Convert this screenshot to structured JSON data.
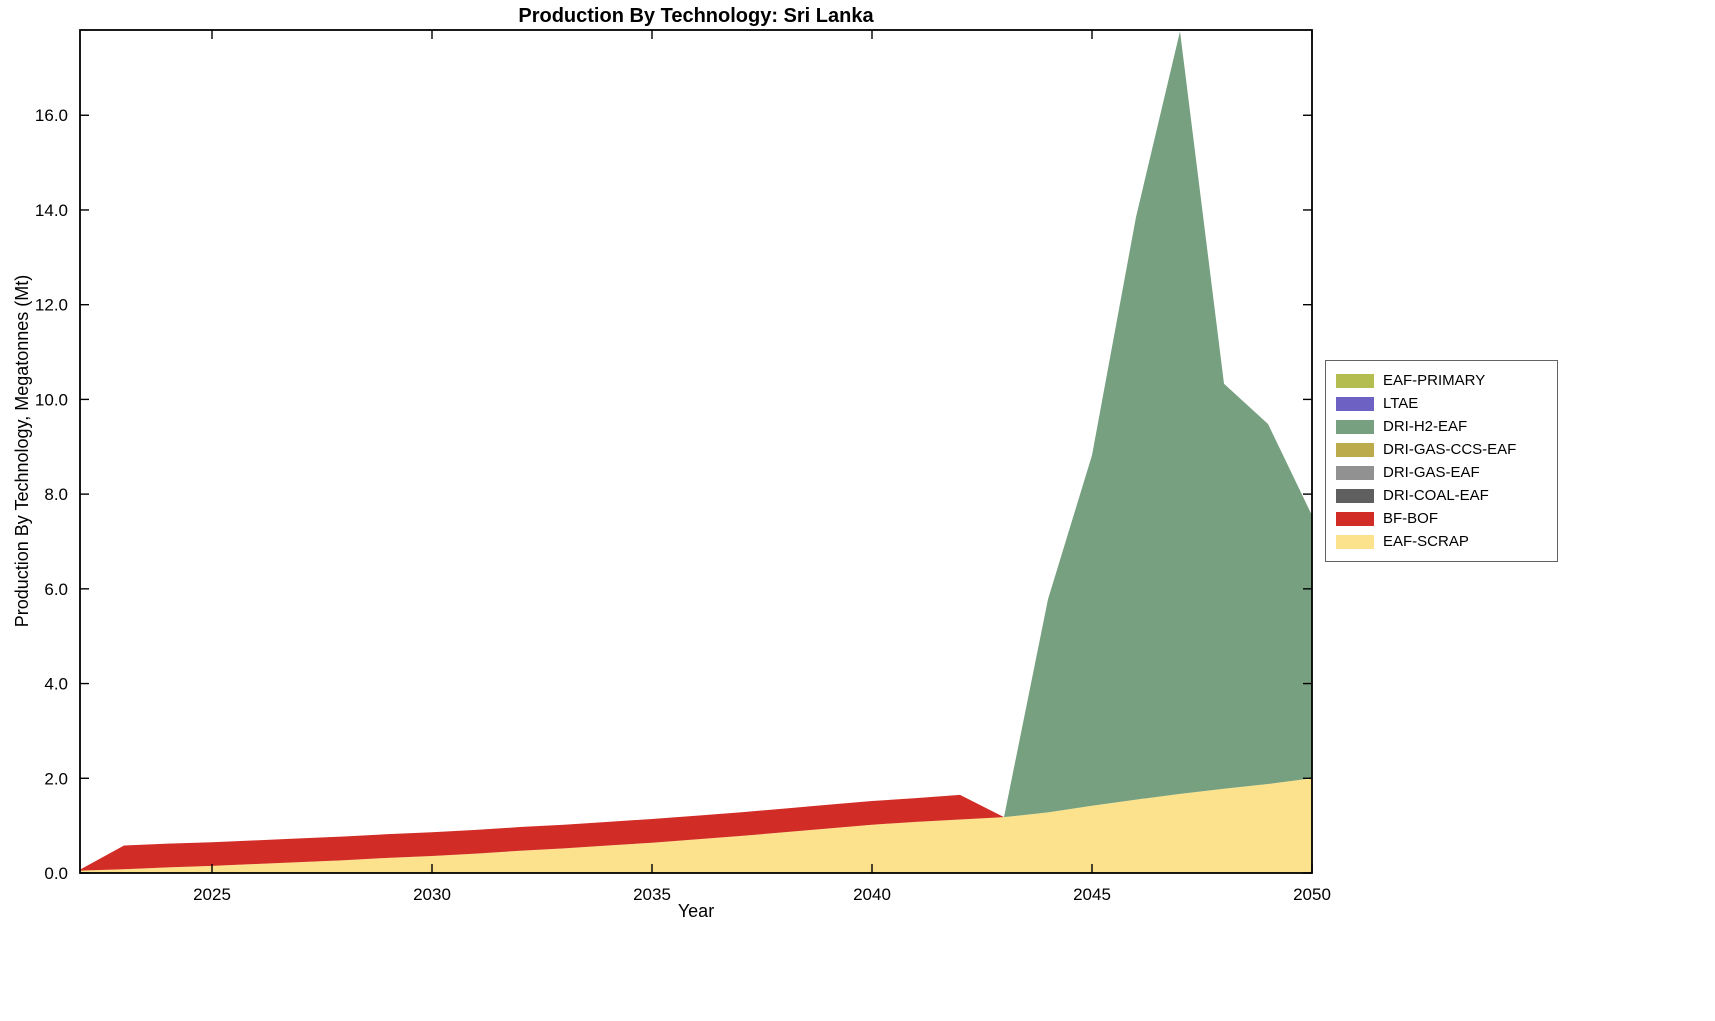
{
  "chart_data": {
    "type": "area",
    "stacked": true,
    "title": "Production By Technology: Sri Lanka",
    "xlabel": "Year",
    "ylabel": "Production By Technology, Megatonnes (Mt)",
    "xlim": [
      2022,
      2050
    ],
    "ylim": [
      0,
      17.8
    ],
    "grid": false,
    "legend_position": "right-outside",
    "x": [
      2022,
      2023,
      2024,
      2025,
      2026,
      2027,
      2028,
      2029,
      2030,
      2031,
      2032,
      2033,
      2034,
      2035,
      2036,
      2037,
      2038,
      2039,
      2040,
      2041,
      2042,
      2043,
      2044,
      2045,
      2046,
      2047,
      2048,
      2049,
      2050
    ],
    "x_ticks": [
      2025,
      2030,
      2035,
      2040,
      2045,
      2050
    ],
    "x_tick_labels": [
      "2025",
      "2030",
      "2035",
      "2040",
      "2045",
      "2050"
    ],
    "y_ticks": [
      0,
      2,
      4,
      6,
      8,
      10,
      12,
      14,
      16
    ],
    "y_tick_labels": [
      "0.0",
      "2.0",
      "4.0",
      "6.0",
      "8.0",
      "10.0",
      "12.0",
      "14.0",
      "16.0"
    ],
    "stack_order": "last-listed-at-bottom",
    "series": [
      {
        "name": "EAF-PRIMARY",
        "color": "#b4bd50",
        "values": [
          0,
          0,
          0,
          0,
          0,
          0,
          0,
          0,
          0,
          0,
          0,
          0,
          0,
          0,
          0,
          0,
          0,
          0,
          0,
          0,
          0,
          0,
          0,
          0,
          0,
          0,
          0,
          0,
          0
        ]
      },
      {
        "name": "LTAE",
        "color": "#6e61c4",
        "values": [
          0,
          0,
          0,
          0,
          0,
          0,
          0,
          0,
          0,
          0,
          0,
          0,
          0,
          0,
          0,
          0,
          0,
          0,
          0,
          0,
          0,
          0,
          0,
          0,
          0,
          0,
          0,
          0,
          0
        ]
      },
      {
        "name": "DRI-H2-EAF",
        "color": "#76a07f",
        "values": [
          0,
          0,
          0,
          0,
          0,
          0,
          0,
          0,
          0,
          0,
          0,
          0,
          0,
          0,
          0,
          0,
          0,
          0,
          0,
          0,
          0,
          0,
          4.5,
          7.4,
          12.3,
          16.1,
          8.55,
          7.6,
          5.55
        ]
      },
      {
        "name": "DRI-GAS-CCS-EAF",
        "color": "#bcab4d",
        "values": [
          0,
          0,
          0,
          0,
          0,
          0,
          0,
          0,
          0,
          0,
          0,
          0,
          0,
          0,
          0,
          0,
          0,
          0,
          0,
          0,
          0,
          0,
          0,
          0,
          0,
          0,
          0,
          0,
          0
        ]
      },
      {
        "name": "DRI-GAS-EAF",
        "color": "#919191",
        "values": [
          0,
          0,
          0,
          0,
          0,
          0,
          0,
          0,
          0,
          0,
          0,
          0,
          0,
          0,
          0,
          0,
          0,
          0,
          0,
          0,
          0,
          0,
          0,
          0,
          0,
          0,
          0,
          0,
          0
        ]
      },
      {
        "name": "DRI-COAL-EAF",
        "color": "#5f5f5f",
        "values": [
          0,
          0,
          0,
          0,
          0,
          0,
          0,
          0,
          0,
          0,
          0,
          0,
          0,
          0,
          0,
          0,
          0,
          0,
          0,
          0,
          0,
          0,
          0,
          0,
          0,
          0,
          0,
          0,
          0
        ]
      },
      {
        "name": "BF-BOF",
        "color": "#d22c26",
        "values": [
          0.02,
          0.5,
          0.5,
          0.5,
          0.5,
          0.5,
          0.5,
          0.5,
          0.5,
          0.5,
          0.5,
          0.5,
          0.5,
          0.5,
          0.5,
          0.5,
          0.5,
          0.5,
          0.5,
          0.5,
          0.52,
          0,
          0,
          0,
          0,
          0,
          0,
          0,
          0
        ]
      },
      {
        "name": "EAF-SCRAP",
        "color": "#fce28c",
        "values": [
          0.05,
          0.08,
          0.12,
          0.15,
          0.19,
          0.23,
          0.27,
          0.32,
          0.36,
          0.41,
          0.47,
          0.52,
          0.58,
          0.64,
          0.71,
          0.78,
          0.86,
          0.94,
          1.02,
          1.08,
          1.13,
          1.18,
          1.28,
          1.42,
          1.55,
          1.67,
          1.78,
          1.88,
          2.0
        ]
      }
    ],
    "frame_color": "#000000",
    "tick_color": "#000000"
  }
}
